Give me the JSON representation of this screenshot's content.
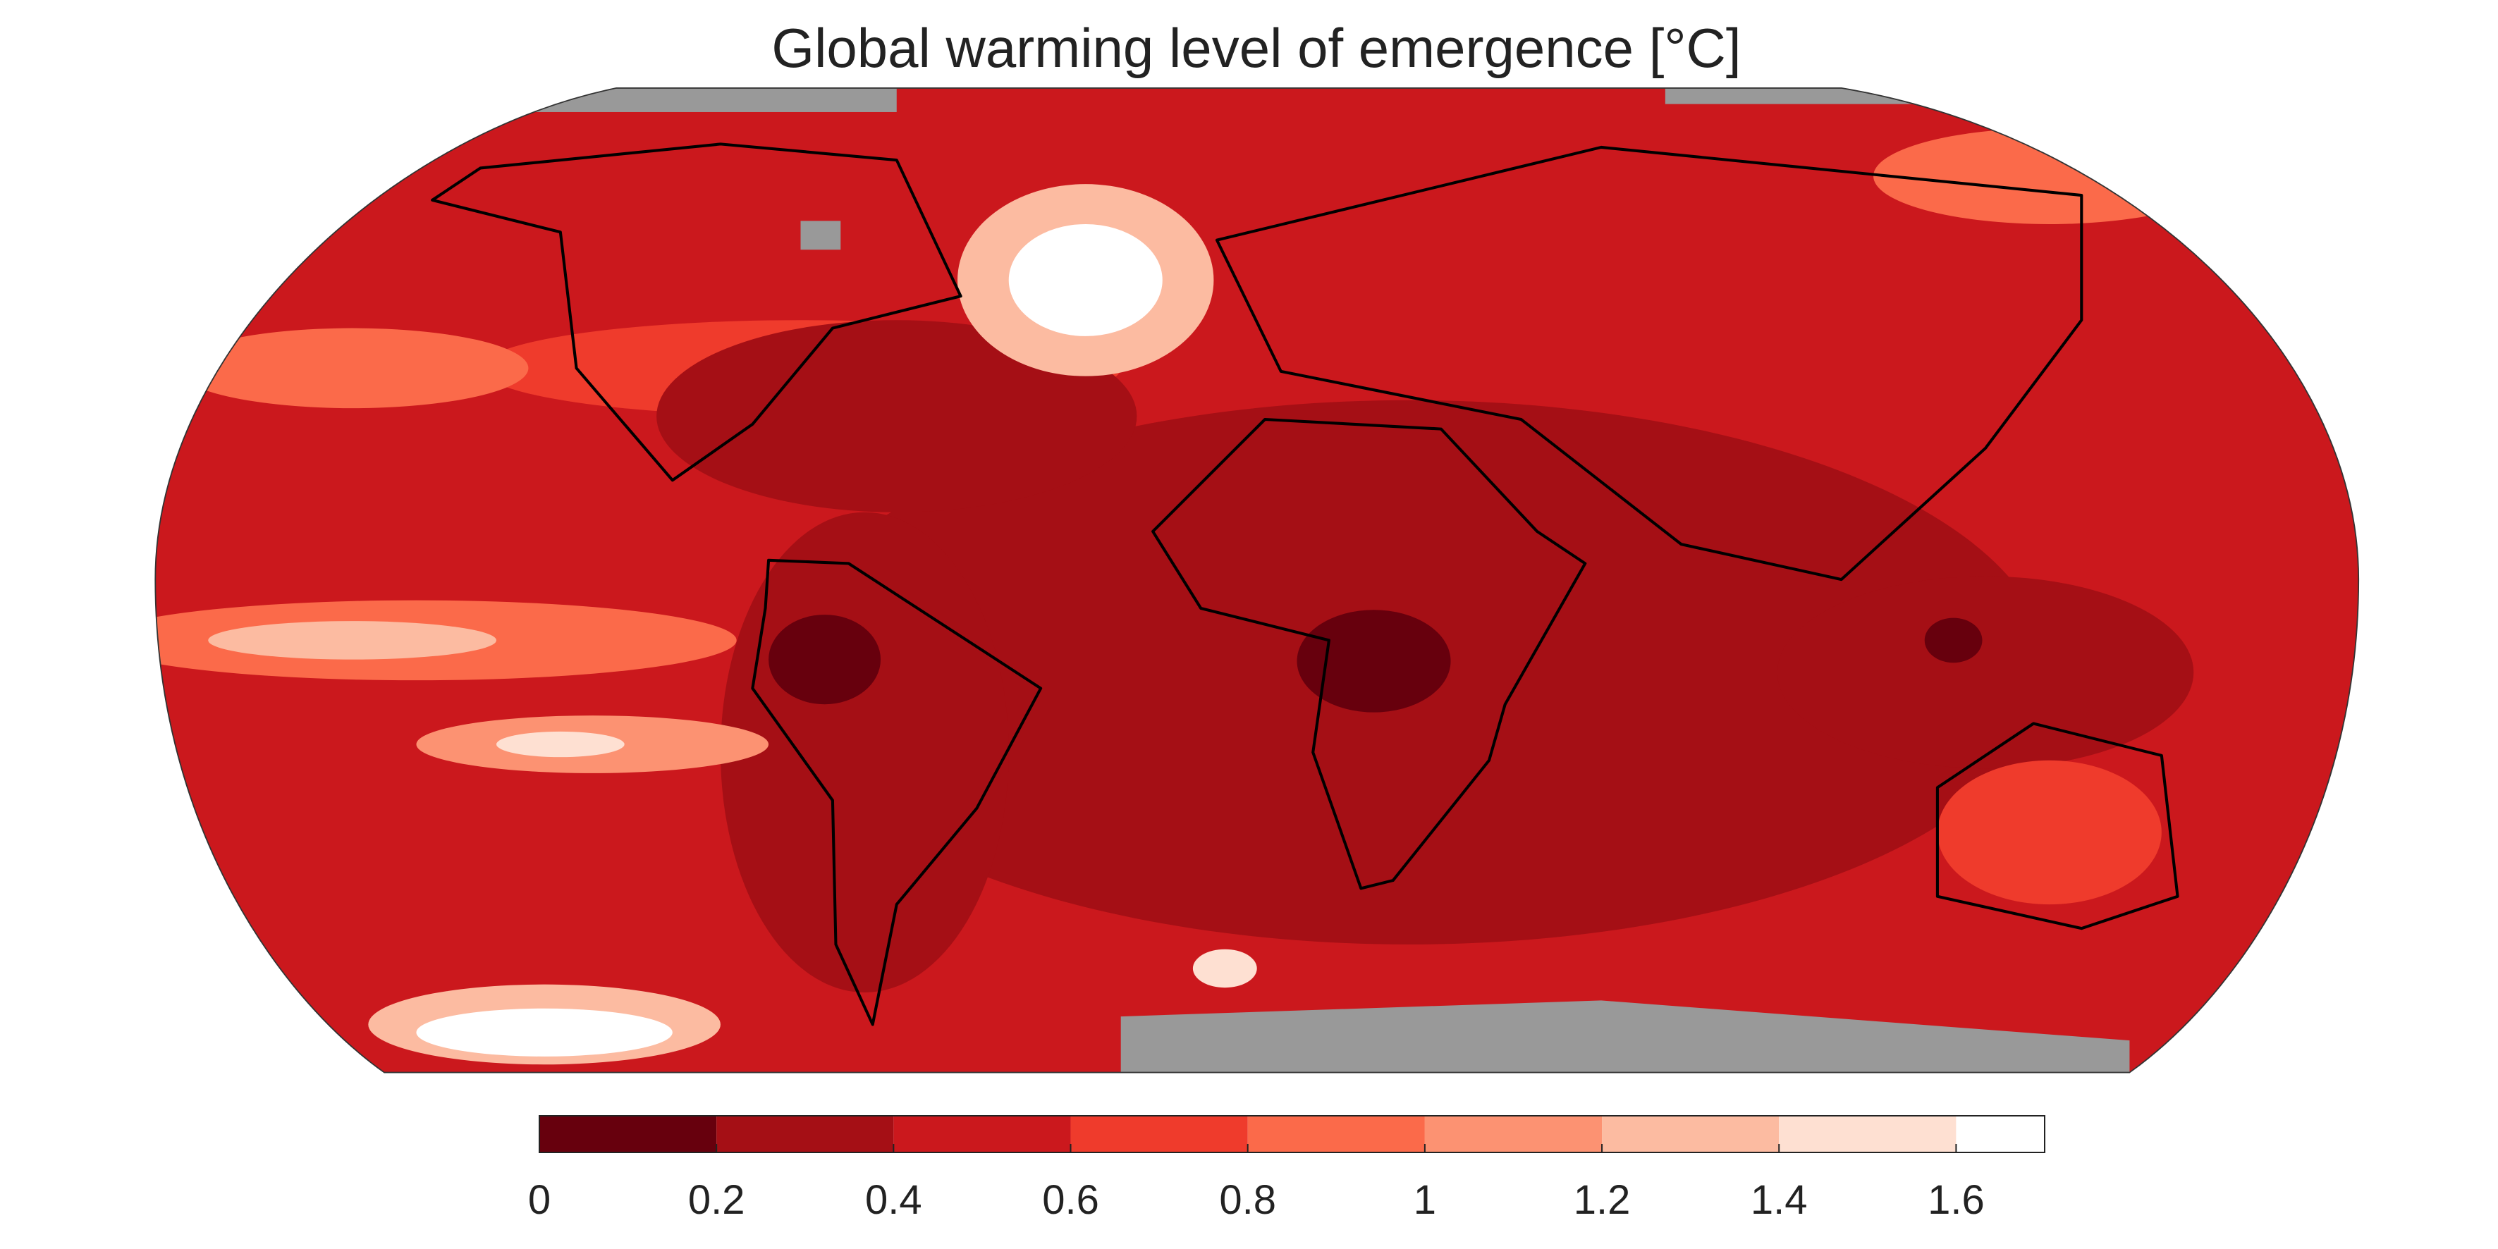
{
  "chart_data": {
    "type": "map",
    "title": "Global warming level of emergence [°C]",
    "colorbar": {
      "lim": [
        0,
        1.7
      ],
      "ticks": [
        0,
        0.2,
        0.4,
        0.6,
        0.8,
        1,
        1.2,
        1.4,
        1.6
      ],
      "bins": [
        0,
        0.2,
        0.4,
        0.6,
        0.8,
        1,
        1.2,
        1.4,
        1.6,
        1.7
      ],
      "colors": [
        "#67000d",
        "#a50f15",
        "#cb181d",
        "#ef3b2c",
        "#fb6a4a",
        "#fc9272",
        "#fcbba1",
        "#fee0d2",
        "#ffffff"
      ]
    },
    "missing_color": "#999999"
  }
}
